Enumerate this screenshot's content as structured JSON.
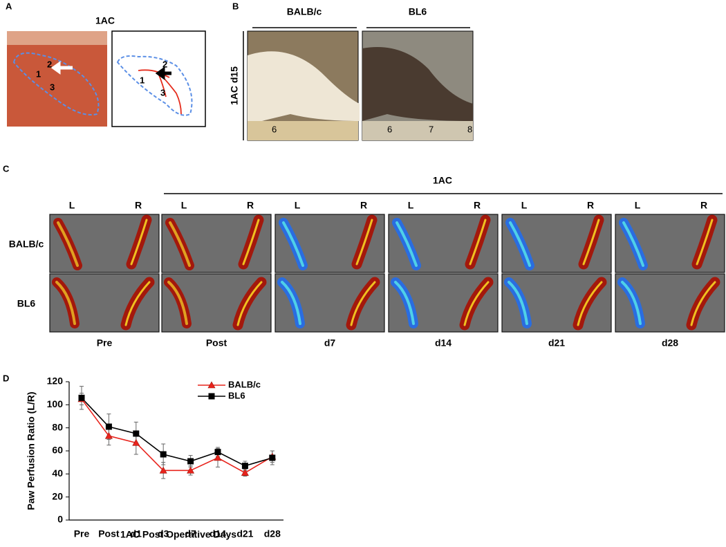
{
  "panel_a": {
    "label": "A",
    "title": "1AC",
    "photo_labels": [
      "1",
      "2",
      "3"
    ],
    "diagram_labels": [
      "1",
      "2",
      "3"
    ]
  },
  "panel_b": {
    "label": "B",
    "columns": [
      "BALB/c",
      "BL6"
    ],
    "row_label": "1AC d15",
    "ruler_left": [
      "6"
    ],
    "ruler_right": [
      "6",
      "7",
      "8"
    ]
  },
  "panel_c": {
    "label": "C",
    "group_label": "1AC",
    "side_labels": [
      "L",
      "R"
    ],
    "rows": [
      "BALB/c",
      "BL6"
    ],
    "columns": [
      "Pre",
      "Post",
      "d7",
      "d14",
      "d21",
      "d28"
    ]
  },
  "panel_d": {
    "label": "D"
  },
  "chart_data": {
    "type": "line",
    "y_label": "Paw Perfusion Ratio (L/R)",
    "x_label": "1AC Post Operative Days",
    "categories": [
      "Pre",
      "Post",
      "d1",
      "d3",
      "d7",
      "d14",
      "d21",
      "d28"
    ],
    "series": [
      {
        "name": "BALB/c",
        "color": "#e8231c",
        "marker": "triangle",
        "values": [
          105,
          73,
          67,
          43,
          43,
          54,
          41,
          55
        ],
        "error": [
          5,
          8,
          10,
          7,
          4,
          8,
          3,
          5
        ]
      },
      {
        "name": "BL6",
        "color": "#000000",
        "marker": "square",
        "values": [
          106,
          81,
          75,
          57,
          51,
          59,
          47,
          54
        ],
        "error": [
          10,
          11,
          10,
          9,
          5,
          4,
          4,
          6
        ]
      }
    ],
    "ylim": [
      0,
      120
    ],
    "yticks": [
      0,
      20,
      40,
      60,
      80,
      100,
      120
    ]
  }
}
